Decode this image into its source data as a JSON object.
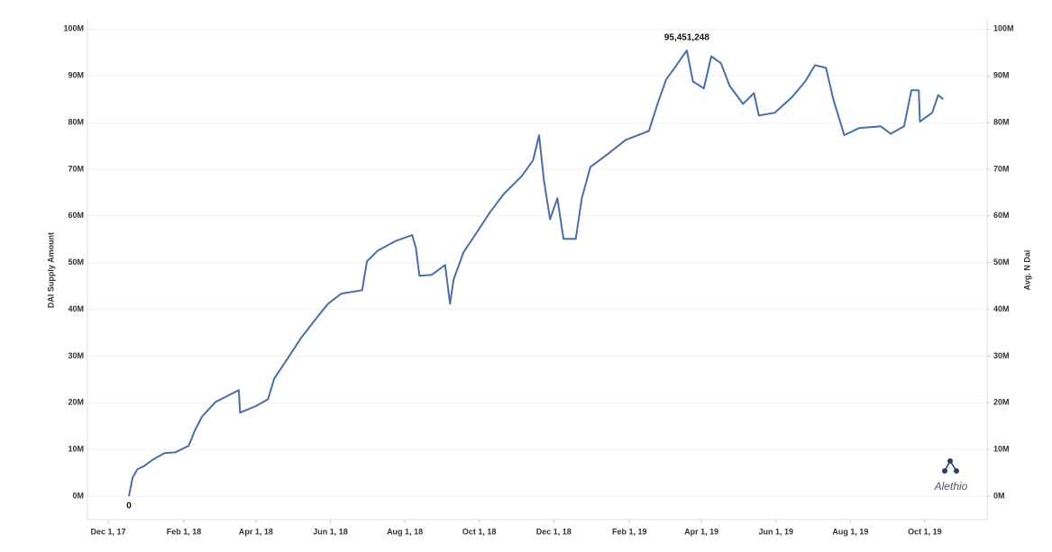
{
  "chart_data": {
    "type": "line",
    "y_label": "DAI Supply Amount",
    "y2_label": "Avg. N Dai",
    "watermark": "Alethio",
    "grid": true,
    "x": [
      "2017-12-18",
      "2017-12-21",
      "2017-12-25",
      "2017-12-30",
      "2018-01-07",
      "2018-01-16",
      "2018-01-25",
      "2018-02-05",
      "2018-02-10",
      "2018-02-16",
      "2018-02-27",
      "2018-03-08",
      "2018-03-18",
      "2018-03-19",
      "2018-04-01",
      "2018-04-11",
      "2018-04-16",
      "2018-04-27",
      "2018-05-08",
      "2018-05-19",
      "2018-05-30",
      "2018-06-10",
      "2018-06-27",
      "2018-07-01",
      "2018-07-10",
      "2018-07-25",
      "2018-08-07",
      "2018-08-10",
      "2018-08-13",
      "2018-08-23",
      "2018-09-03",
      "2018-09-07",
      "2018-09-10",
      "2018-09-18",
      "2018-09-29",
      "2018-10-10",
      "2018-10-21",
      "2018-11-05",
      "2018-11-14",
      "2018-11-19",
      "2018-11-23",
      "2018-11-28",
      "2018-12-04",
      "2018-12-09",
      "2018-12-19",
      "2018-12-24",
      "2018-12-31",
      "2019-01-15",
      "2019-01-29",
      "2019-02-17",
      "2019-02-24",
      "2019-03-03",
      "2019-03-10",
      "2019-03-20",
      "2019-03-25",
      "2019-04-03",
      "2019-04-09",
      "2019-04-17",
      "2019-04-24",
      "2019-05-05",
      "2019-05-14",
      "2019-05-18",
      "2019-05-31",
      "2019-06-14",
      "2019-06-25",
      "2019-07-03",
      "2019-07-12",
      "2019-07-18",
      "2019-07-27",
      "2019-08-08",
      "2019-08-26",
      "2019-09-03",
      "2019-09-14",
      "2019-09-20",
      "2019-09-26",
      "2019-09-27",
      "2019-10-07",
      "2019-10-12",
      "2019-10-16"
    ],
    "series": [
      {
        "name": "DAI Supply",
        "color": "#4a6fa5",
        "values": [
          0,
          4000000,
          5800000,
          6400000,
          7900000,
          9200000,
          9400000,
          10800000,
          14100000,
          17100000,
          20200000,
          21400000,
          22700000,
          17900000,
          19300000,
          20800000,
          25200000,
          29500000,
          33900000,
          37600000,
          41200000,
          43400000,
          44100000,
          50300000,
          52600000,
          54700000,
          55900000,
          53200000,
          47200000,
          47400000,
          49500000,
          41200000,
          46400000,
          52200000,
          56500000,
          60900000,
          64700000,
          68600000,
          71900000,
          77300000,
          67600000,
          59300000,
          63800000,
          55100000,
          55100000,
          63800000,
          70500000,
          73400000,
          76300000,
          78200000,
          84000000,
          89200000,
          91700000,
          95451248,
          88800000,
          87300000,
          94200000,
          92700000,
          87900000,
          84000000,
          86300000,
          81500000,
          82100000,
          85400000,
          88800000,
          92300000,
          91700000,
          85000000,
          77300000,
          78800000,
          79200000,
          77600000,
          79200000,
          86900000,
          86900000,
          80200000,
          82100000,
          85900000,
          85000000
        ],
        "value_labels": [
          "0",
          null,
          null,
          null,
          null,
          null,
          null,
          null,
          null,
          null,
          null,
          null,
          null,
          null,
          null,
          null,
          null,
          null,
          null,
          null,
          null,
          null,
          null,
          null,
          null,
          null,
          null,
          null,
          null,
          null,
          null,
          null,
          null,
          null,
          null,
          null,
          null,
          null,
          null,
          null,
          null,
          null,
          null,
          null,
          null,
          null,
          null,
          null,
          null,
          null,
          null,
          null,
          null,
          "95,451,248",
          null,
          null,
          null,
          null,
          null,
          null,
          null,
          null,
          null,
          null,
          null,
          null,
          null,
          null,
          null,
          null,
          null,
          null,
          null,
          null,
          null,
          null,
          null,
          null,
          null
        ]
      }
    ],
    "xlim": [
      "2017-11-14",
      "2019-11-21"
    ],
    "xticks": [
      {
        "value": "2017-12-01",
        "label": "Dec 1, 17"
      },
      {
        "value": "2018-02-01",
        "label": "Feb 1, 18"
      },
      {
        "value": "2018-04-01",
        "label": "Apr 1, 18"
      },
      {
        "value": "2018-06-01",
        "label": "Jun 1, 18"
      },
      {
        "value": "2018-08-01",
        "label": "Aug 1, 18"
      },
      {
        "value": "2018-10-01",
        "label": "Oct 1, 18"
      },
      {
        "value": "2018-12-01",
        "label": "Dec 1, 18"
      },
      {
        "value": "2019-02-01",
        "label": "Feb 1, 19"
      },
      {
        "value": "2019-04-01",
        "label": "Apr 1, 19"
      },
      {
        "value": "2019-06-01",
        "label": "Jun 1, 19"
      },
      {
        "value": "2019-08-01",
        "label": "Aug 1, 19"
      },
      {
        "value": "2019-10-01",
        "label": "Oct 1, 19"
      }
    ],
    "ylim": [
      -5000000,
      102000000
    ],
    "yticks": [
      {
        "value": 0,
        "label": "0M"
      },
      {
        "value": 10000000,
        "label": "10M"
      },
      {
        "value": 20000000,
        "label": "20M"
      },
      {
        "value": 30000000,
        "label": "30M"
      },
      {
        "value": 40000000,
        "label": "40M"
      },
      {
        "value": 50000000,
        "label": "50M"
      },
      {
        "value": 60000000,
        "label": "60M"
      },
      {
        "value": 70000000,
        "label": "70M"
      },
      {
        "value": 80000000,
        "label": "80M"
      },
      {
        "value": 90000000,
        "label": "90M"
      },
      {
        "value": 100000000,
        "label": "100M"
      }
    ],
    "y2lim": [
      -5000000,
      102000000
    ],
    "y2ticks": [
      {
        "value": 0,
        "label": "0M"
      },
      {
        "value": 10000000,
        "label": "10M"
      },
      {
        "value": 20000000,
        "label": "20M"
      },
      {
        "value": 30000000,
        "label": "30M"
      },
      {
        "value": 40000000,
        "label": "40M"
      },
      {
        "value": 50000000,
        "label": "50M"
      },
      {
        "value": 60000000,
        "label": "60M"
      },
      {
        "value": 70000000,
        "label": "70M"
      },
      {
        "value": 80000000,
        "label": "80M"
      },
      {
        "value": 90000000,
        "label": "90M"
      },
      {
        "value": 100000000,
        "label": "100M"
      }
    ]
  }
}
